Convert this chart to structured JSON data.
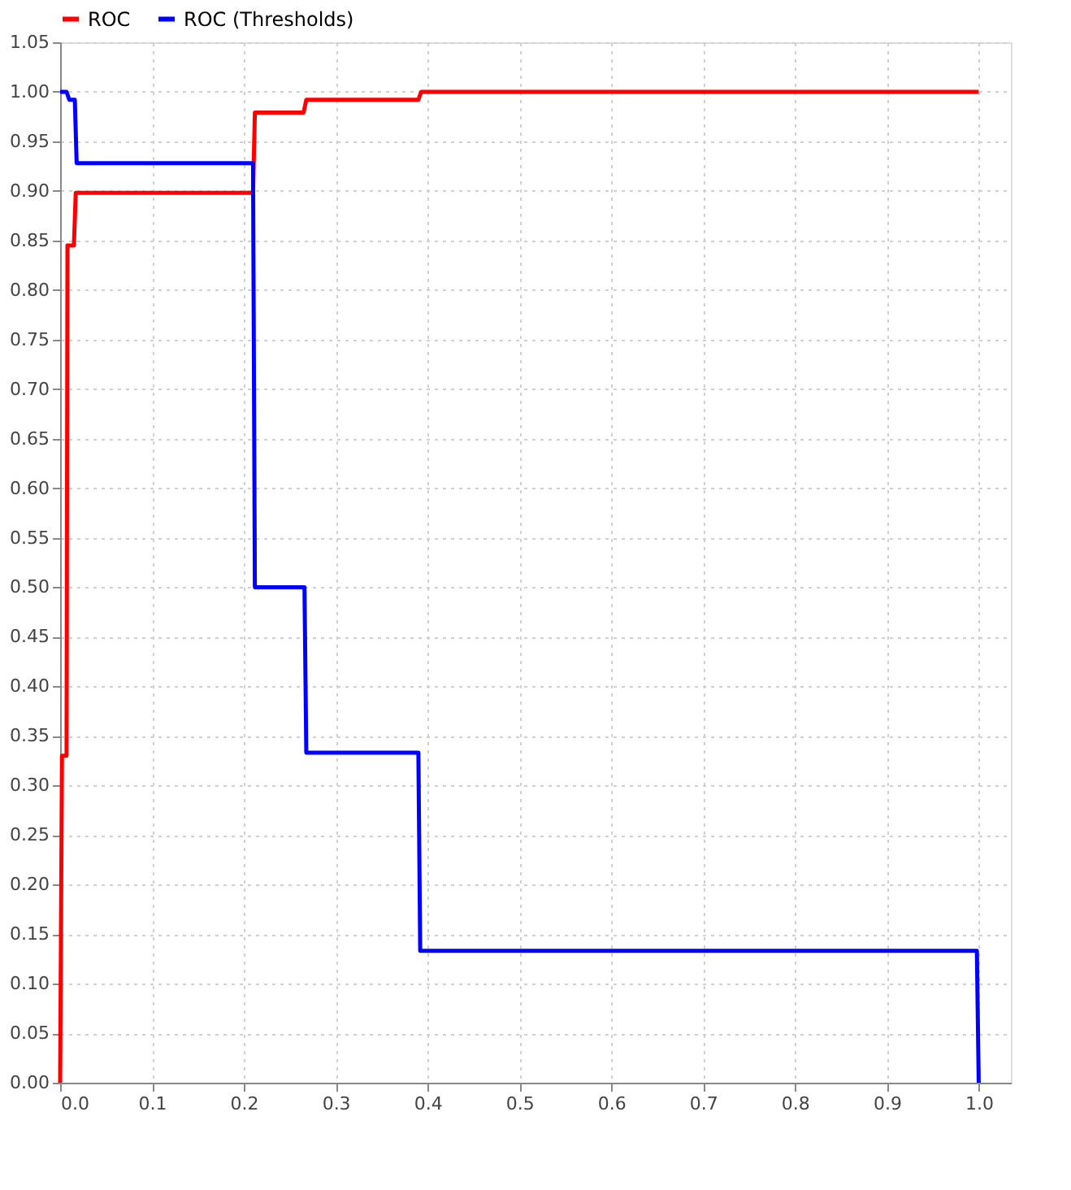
{
  "chart_data": {
    "type": "line",
    "series": [
      {
        "name": "ROC",
        "color": "#ff0000",
        "x": [
          0,
          0.002,
          0.007,
          0.008,
          0.015,
          0.017,
          0.21,
          0.212,
          0.265,
          0.268,
          0.39,
          0.393,
          1.0
        ],
        "values": [
          0,
          0.33,
          0.33,
          0.845,
          0.845,
          0.898,
          0.898,
          0.979,
          0.979,
          0.992,
          0.992,
          1.0,
          1.0
        ]
      },
      {
        "name": "ROC (Thresholds)",
        "color": "#0000ff",
        "x": [
          0,
          0.007,
          0.01,
          0.016,
          0.018,
          0.21,
          0.212,
          0.266,
          0.268,
          0.39,
          0.392,
          0.998,
          1.0
        ],
        "values": [
          1.0,
          1.0,
          0.992,
          0.992,
          0.928,
          0.928,
          0.5,
          0.5,
          0.333,
          0.333,
          0.133,
          0.133,
          0
        ]
      }
    ],
    "xlim": [
      0,
      1.035
    ],
    "ylim": [
      0,
      1.05
    ],
    "xticks": [
      {
        "value": 0,
        "label": "0.0"
      },
      0.1,
      0.2,
      0.3,
      0.4,
      0.5,
      0.6,
      0.7,
      0.8,
      0.9,
      {
        "value": 1,
        "label": "1.0"
      }
    ],
    "yticks": [
      {
        "value": 0,
        "label": "0.00"
      },
      0.05,
      {
        "value": 0.1,
        "label": "0.10"
      },
      0.15,
      {
        "value": 0.2,
        "label": "0.20"
      },
      0.25,
      {
        "value": 0.3,
        "label": "0.30"
      },
      0.35,
      {
        "value": 0.4,
        "label": "0.40"
      },
      0.45,
      {
        "value": 0.5,
        "label": "0.50"
      },
      0.55,
      {
        "value": 0.6,
        "label": "0.60"
      },
      0.65,
      {
        "value": 0.7,
        "label": "0.70"
      },
      0.75,
      {
        "value": 0.8,
        "label": "0.80"
      },
      0.85,
      {
        "value": 0.9,
        "label": "0.90"
      },
      0.95,
      {
        "value": 1,
        "label": "1.00"
      },
      1.05
    ],
    "grid": true,
    "legend": "top left",
    "line_style": "solid",
    "marker": "none"
  }
}
